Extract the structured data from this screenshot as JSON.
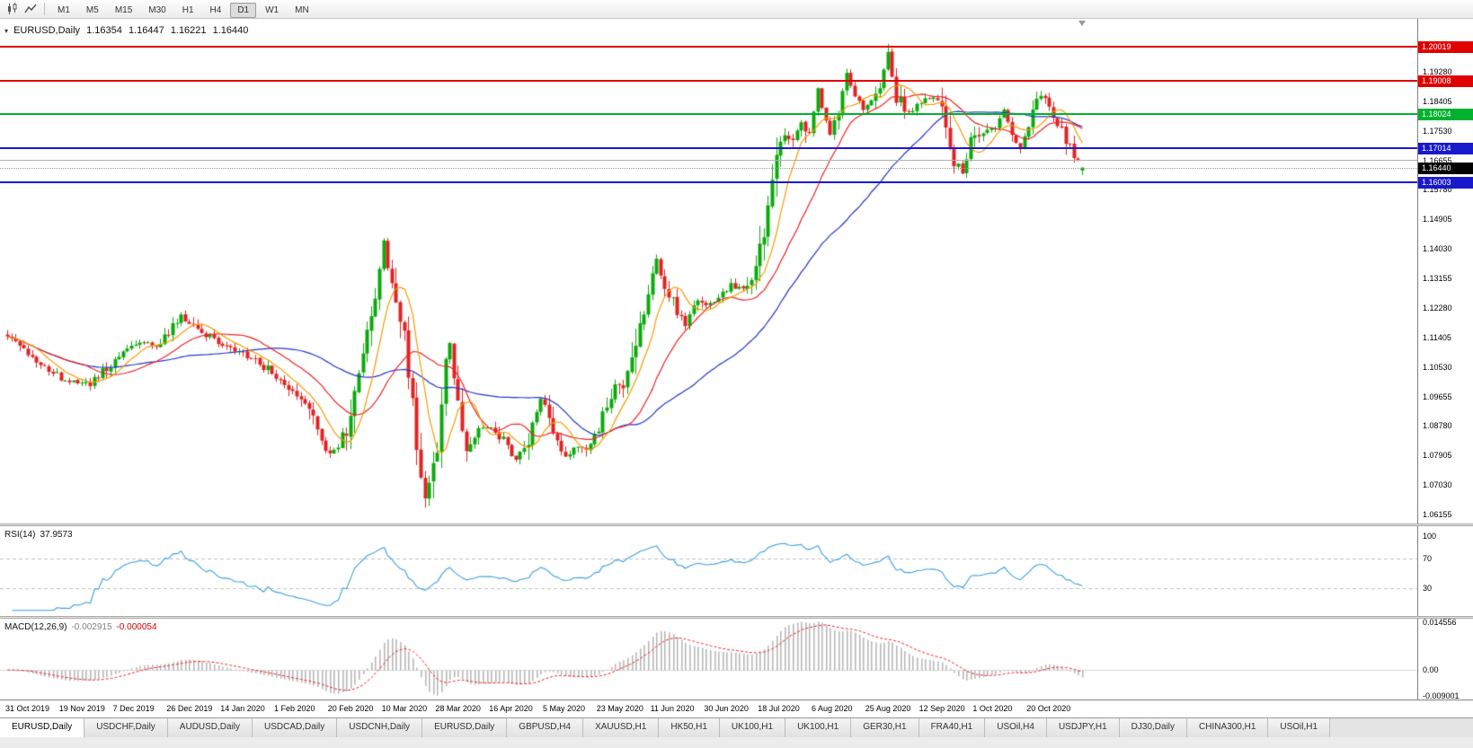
{
  "toolbar": {
    "icons": [
      {
        "name": "candlestick-style-icon"
      },
      {
        "name": "zigzag-indicator-icon"
      }
    ],
    "timeframes": [
      "M1",
      "M5",
      "M15",
      "M30",
      "H1",
      "H4",
      "D1",
      "W1",
      "MN"
    ],
    "active_timeframe": "D1"
  },
  "chart": {
    "title": "EURUSD,Daily",
    "ohlc": {
      "open": "1.16354",
      "high": "1.16447",
      "low": "1.16221",
      "close": "1.16440"
    }
  },
  "price_axis": {
    "labels": [
      "1.19280",
      "1.18405",
      "1.17530",
      "1.16655",
      "1.15780",
      "1.14905",
      "1.14030",
      "1.13155",
      "1.12280",
      "1.11405",
      "1.10530",
      "1.09655",
      "1.08780",
      "1.07905",
      "1.07030",
      "1.06155"
    ]
  },
  "rsi_panel": {
    "name": "RSI(14)",
    "value": "37.9573",
    "levels": [
      70,
      30
    ],
    "axis_labels": [
      {
        "text": "100",
        "value": 100
      },
      {
        "text": "70",
        "value": 70
      },
      {
        "text": "30",
        "value": 30
      }
    ]
  },
  "macd_panel": {
    "name": "MACD(12,26,9)",
    "value_main": "-0.002915",
    "value_signal": "-0.000054",
    "axis_labels": [
      {
        "text": "0.014556",
        "value": 0.014556
      },
      {
        "text": "0.00",
        "value": 0
      },
      {
        "text": "-0.009001",
        "value": -0.009001
      }
    ]
  },
  "date_axis": {
    "labels": [
      "31 Oct 2019",
      "19 Nov 2019",
      "7 Dec 2019",
      "26 Dec 2019",
      "14 Jan 2020",
      "1 Feb 2020",
      "20 Feb 2020",
      "10 Mar 2020",
      "28 Mar 2020",
      "16 Apr 2020",
      "5 May 2020",
      "23 May 2020",
      "11 Jun 2020",
      "30 Jun 2020",
      "18 Jul 2020",
      "6 Aug 2020",
      "25 Aug 2020",
      "12 Sep 2020",
      "1 Oct 2020",
      "20 Oct 2020"
    ],
    "candles_per_label": 13
  },
  "tabs": {
    "items": [
      "EURUSD,Daily",
      "USDCHF,Daily",
      "AUDUSD,Daily",
      "USDCAD,Daily",
      "USDCNH,Daily",
      "EURUSD,Daily",
      "GBPUSD,H4",
      "XAUUSD,H1",
      "HK50,H1",
      "UK100,H1",
      "UK100,H1",
      "GER30,H1",
      "FRA40,H1",
      "USOil,H4",
      "USDJPY,H1",
      "DJ30,Daily",
      "CHINA300,H1",
      "USOil,H1"
    ],
    "active_index": 0
  },
  "chart_data": {
    "type": "candlestick",
    "symbol": "EURUSD",
    "period": "Daily",
    "candle_count": 261,
    "seed": 1337,
    "price_waypoints": [
      [
        0,
        1.115
      ],
      [
        6,
        1.1085
      ],
      [
        13,
        1.102
      ],
      [
        20,
        1.1
      ],
      [
        26,
        1.1075
      ],
      [
        32,
        1.113
      ],
      [
        36,
        1.111
      ],
      [
        42,
        1.1205
      ],
      [
        47,
        1.1155
      ],
      [
        52,
        1.1115
      ],
      [
        58,
        1.1085
      ],
      [
        65,
        1.103
      ],
      [
        72,
        1.0955
      ],
      [
        78,
        1.079
      ],
      [
        82,
        1.086
      ],
      [
        86,
        1.108
      ],
      [
        89,
        1.128
      ],
      [
        91,
        1.142
      ],
      [
        93,
        1.129
      ],
      [
        96,
        1.113
      ],
      [
        99,
        1.084
      ],
      [
        101,
        1.066
      ],
      [
        104,
        1.083
      ],
      [
        106,
        1.106
      ],
      [
        107,
        1.112
      ],
      [
        109,
        1.096
      ],
      [
        111,
        1.08
      ],
      [
        114,
        1.086
      ],
      [
        117,
        1.087
      ],
      [
        120,
        1.083
      ],
      [
        123,
        1.0775
      ],
      [
        126,
        1.084
      ],
      [
        129,
        1.096
      ],
      [
        131,
        1.09
      ],
      [
        133,
        1.082
      ],
      [
        135,
        1.078
      ],
      [
        138,
        1.082
      ],
      [
        141,
        1.081
      ],
      [
        144,
        1.092
      ],
      [
        147,
        1.099
      ],
      [
        150,
        1.102
      ],
      [
        152,
        1.111
      ],
      [
        154,
        1.123
      ],
      [
        157,
        1.137
      ],
      [
        159,
        1.13
      ],
      [
        162,
        1.121
      ],
      [
        164,
        1.118
      ],
      [
        167,
        1.125
      ],
      [
        169,
        1.123
      ],
      [
        172,
        1.1255
      ],
      [
        175,
        1.13
      ],
      [
        178,
        1.1285
      ],
      [
        181,
        1.134
      ],
      [
        184,
        1.151
      ],
      [
        186,
        1.165
      ],
      [
        188,
        1.175
      ],
      [
        190,
        1.172
      ],
      [
        192,
        1.178
      ],
      [
        194,
        1.176
      ],
      [
        196,
        1.187
      ],
      [
        199,
        1.174
      ],
      [
        201,
        1.18
      ],
      [
        203,
        1.193
      ],
      [
        205,
        1.1845
      ],
      [
        207,
        1.181
      ],
      [
        209,
        1.184
      ],
      [
        211,
        1.188
      ],
      [
        213,
        1.1985
      ],
      [
        215,
        1.185
      ],
      [
        217,
        1.182
      ],
      [
        219,
        1.1805
      ],
      [
        221,
        1.1845
      ],
      [
        223,
        1.185
      ],
      [
        225,
        1.184
      ],
      [
        227,
        1.177
      ],
      [
        229,
        1.166
      ],
      [
        231,
        1.1631
      ],
      [
        233,
        1.172
      ],
      [
        235,
        1.1745
      ],
      [
        237,
        1.176
      ],
      [
        239,
        1.177
      ],
      [
        241,
        1.1826
      ],
      [
        243,
        1.175
      ],
      [
        245,
        1.171
      ],
      [
        247,
        1.177
      ],
      [
        249,
        1.186
      ],
      [
        251,
        1.1855
      ],
      [
        253,
        1.18
      ],
      [
        255,
        1.1745
      ],
      [
        257,
        1.17
      ],
      [
        259,
        1.1655
      ],
      [
        260,
        1.1644
      ]
    ],
    "overrides": {
      "101": {
        "low": 1.0636
      },
      "213": {
        "high": 1.2011
      },
      "260": {
        "open": 1.16354,
        "high": 1.16447,
        "low": 1.16221,
        "close": 1.1644
      }
    },
    "up_color": "#0caa0c",
    "down_color": "#e32222",
    "moving_averages": [
      {
        "period": 8,
        "color": "#f59b00"
      },
      {
        "period": 20,
        "color": "#ee2222"
      },
      {
        "period": 45,
        "color": "#2233cc"
      }
    ],
    "horizontal_levels": [
      {
        "price": 1.20019,
        "label": "1.20019",
        "color": "#e00000"
      },
      {
        "price": 1.19008,
        "label": "1.19008",
        "color": "#e00000"
      },
      {
        "price": 1.18024,
        "label": "1.18024",
        "color": "#00b22d"
      },
      {
        "price": 1.17014,
        "label": "1.17014",
        "color": "#1919cc"
      },
      {
        "price": 1.16003,
        "label": "1.16003",
        "color": "#1919cc"
      },
      {
        "price": 1.1665,
        "label": "",
        "color": "#b0b0b0"
      }
    ],
    "bid_line": {
      "price": 1.1644,
      "label": "1.16440",
      "line_color": "#9b9b9b",
      "tag_bg": "#000000",
      "tag_text_color": "#ffffff"
    },
    "rsi": {
      "period": 14,
      "color": "#3aa0dc",
      "level_color": "#c0c0c0",
      "current": 37.9573
    },
    "macd": {
      "fast": 12,
      "slow": 26,
      "signal": 9,
      "histogram_color": "#b8b8b8",
      "signal_color": "#ee2222",
      "current_main": -0.002915,
      "current_signal": -5.4e-05
    },
    "y_axis": {
      "top_label": 1.1928,
      "label_step": 0.00875
    }
  }
}
